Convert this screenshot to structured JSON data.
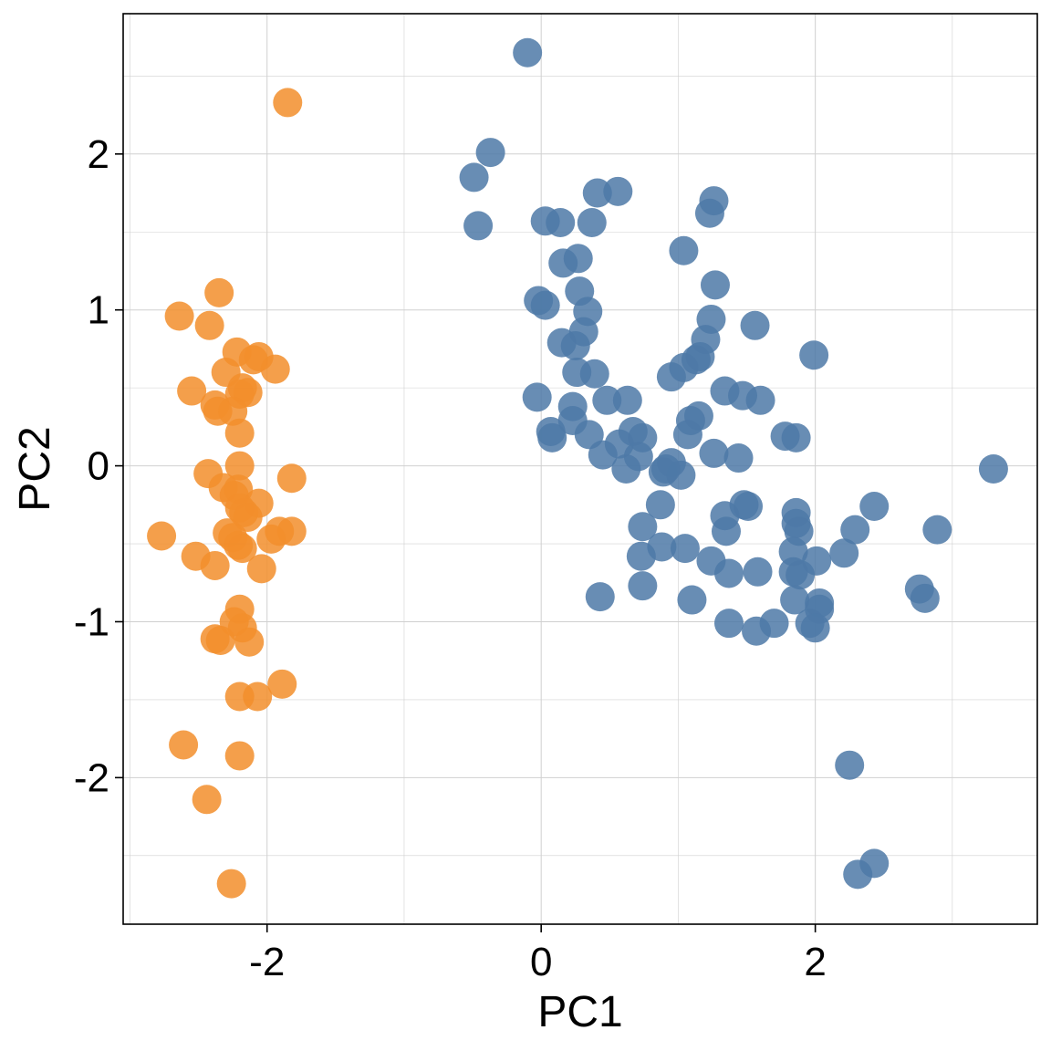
{
  "chart_data": {
    "type": "scatter",
    "title": "",
    "xlabel": "PC1",
    "ylabel": "PC2",
    "xlim": [
      -3.05,
      3.62
    ],
    "ylim": [
      -2.94,
      2.9
    ],
    "x_ticks": [
      -2,
      0,
      2
    ],
    "x_tick_labels": [
      "-2",
      "0",
      "2"
    ],
    "y_ticks": [
      -2,
      -1,
      0,
      1,
      2
    ],
    "y_tick_labels": [
      "-2",
      "-1",
      "0",
      "1",
      "2"
    ],
    "grid": true,
    "legend": "none",
    "colors": {
      "orange": "#f28e2b",
      "blue": "#4e79a7",
      "grid": "#d0d0d0",
      "frame": "#000000"
    },
    "series": [
      {
        "color": "#f28e2b",
        "points": [
          [
            -1.85,
            2.33
          ],
          [
            -2.35,
            1.11
          ],
          [
            -2.64,
            0.96
          ],
          [
            -2.42,
            0.9
          ],
          [
            -2.22,
            0.73
          ],
          [
            -2.06,
            0.7
          ],
          [
            -2.1,
            0.68
          ],
          [
            -1.94,
            0.62
          ],
          [
            -2.3,
            0.6
          ],
          [
            -2.18,
            0.5
          ],
          [
            -2.55,
            0.48
          ],
          [
            -2.14,
            0.47
          ],
          [
            -2.2,
            0.46
          ],
          [
            -2.38,
            0.39
          ],
          [
            -2.36,
            0.35
          ],
          [
            -2.25,
            0.35
          ],
          [
            -2.2,
            0.21
          ],
          [
            -2.2,
            0.0
          ],
          [
            -2.43,
            -0.05
          ],
          [
            -1.82,
            -0.08
          ],
          [
            -2.21,
            -0.15
          ],
          [
            -2.32,
            -0.14
          ],
          [
            -2.24,
            -0.19
          ],
          [
            -2.06,
            -0.24
          ],
          [
            -2.2,
            -0.27
          ],
          [
            -2.17,
            -0.3
          ],
          [
            -2.14,
            -0.33
          ],
          [
            -2.77,
            -0.45
          ],
          [
            -1.91,
            -0.42
          ],
          [
            -1.82,
            -0.42
          ],
          [
            -2.29,
            -0.43
          ],
          [
            -2.25,
            -0.46
          ],
          [
            -1.97,
            -0.47
          ],
          [
            -2.21,
            -0.51
          ],
          [
            -2.18,
            -0.53
          ],
          [
            -2.52,
            -0.58
          ],
          [
            -2.38,
            -0.64
          ],
          [
            -2.04,
            -0.66
          ],
          [
            -2.2,
            -0.92
          ],
          [
            -2.24,
            -1.0
          ],
          [
            -2.18,
            -1.04
          ],
          [
            -2.38,
            -1.11
          ],
          [
            -2.34,
            -1.12
          ],
          [
            -2.13,
            -1.13
          ],
          [
            -1.89,
            -1.4
          ],
          [
            -2.2,
            -1.48
          ],
          [
            -2.07,
            -1.48
          ],
          [
            -2.61,
            -1.79
          ],
          [
            -2.2,
            -1.86
          ],
          [
            -2.44,
            -2.14
          ],
          [
            -2.26,
            -2.68
          ]
        ]
      },
      {
        "color": "#4e79a7",
        "points": [
          [
            -0.1,
            2.65
          ],
          [
            -0.37,
            2.01
          ],
          [
            -0.49,
            1.85
          ],
          [
            -0.46,
            1.54
          ],
          [
            0.41,
            1.75
          ],
          [
            0.56,
            1.76
          ],
          [
            1.26,
            1.7
          ],
          [
            1.23,
            1.62
          ],
          [
            0.03,
            1.57
          ],
          [
            0.14,
            1.56
          ],
          [
            0.37,
            1.56
          ],
          [
            1.04,
            1.38
          ],
          [
            0.16,
            1.3
          ],
          [
            0.27,
            1.33
          ],
          [
            1.27,
            1.16
          ],
          [
            0.28,
            1.12
          ],
          [
            -0.02,
            1.06
          ],
          [
            0.03,
            1.03
          ],
          [
            0.34,
            0.99
          ],
          [
            1.24,
            0.94
          ],
          [
            1.56,
            0.9
          ],
          [
            0.31,
            0.86
          ],
          [
            0.15,
            0.79
          ],
          [
            0.25,
            0.77
          ],
          [
            1.2,
            0.81
          ],
          [
            1.99,
            0.71
          ],
          [
            1.16,
            0.7
          ],
          [
            1.13,
            0.68
          ],
          [
            1.04,
            0.63
          ],
          [
            0.95,
            0.57
          ],
          [
            0.26,
            0.6
          ],
          [
            0.39,
            0.59
          ],
          [
            1.34,
            0.48
          ],
          [
            1.47,
            0.45
          ],
          [
            1.6,
            0.42
          ],
          [
            -0.03,
            0.44
          ],
          [
            0.48,
            0.42
          ],
          [
            0.63,
            0.42
          ],
          [
            0.23,
            0.38
          ],
          [
            1.15,
            0.32
          ],
          [
            1.09,
            0.29
          ],
          [
            0.23,
            0.29
          ],
          [
            0.07,
            0.22
          ],
          [
            0.35,
            0.2
          ],
          [
            1.07,
            0.2
          ],
          [
            0.08,
            0.18
          ],
          [
            0.67,
            0.22
          ],
          [
            0.74,
            0.18
          ],
          [
            1.78,
            0.19
          ],
          [
            1.86,
            0.18
          ],
          [
            0.57,
            0.14
          ],
          [
            0.71,
            0.06
          ],
          [
            1.26,
            0.08
          ],
          [
            1.44,
            0.05
          ],
          [
            0.45,
            0.07
          ],
          [
            0.62,
            -0.02
          ],
          [
            0.95,
            0.02
          ],
          [
            0.91,
            -0.02
          ],
          [
            0.89,
            -0.04
          ],
          [
            1.02,
            -0.06
          ],
          [
            3.3,
            -0.02
          ],
          [
            0.87,
            -0.25
          ],
          [
            1.48,
            -0.25
          ],
          [
            1.51,
            -0.26
          ],
          [
            2.43,
            -0.26
          ],
          [
            1.34,
            -0.32
          ],
          [
            1.86,
            -0.3
          ],
          [
            0.74,
            -0.39
          ],
          [
            1.35,
            -0.42
          ],
          [
            1.86,
            -0.37
          ],
          [
            1.88,
            -0.42
          ],
          [
            2.29,
            -0.41
          ],
          [
            2.89,
            -0.41
          ],
          [
            0.88,
            -0.52
          ],
          [
            1.05,
            -0.53
          ],
          [
            0.73,
            -0.58
          ],
          [
            1.84,
            -0.55
          ],
          [
            2.21,
            -0.56
          ],
          [
            1.24,
            -0.61
          ],
          [
            2.01,
            -0.61
          ],
          [
            1.37,
            -0.69
          ],
          [
            1.58,
            -0.68
          ],
          [
            1.84,
            -0.68
          ],
          [
            1.89,
            -0.7
          ],
          [
            0.74,
            -0.77
          ],
          [
            2.76,
            -0.79
          ],
          [
            2.8,
            -0.85
          ],
          [
            0.43,
            -0.84
          ],
          [
            1.1,
            -0.86
          ],
          [
            1.85,
            -0.86
          ],
          [
            2.03,
            -0.88
          ],
          [
            2.03,
            -0.92
          ],
          [
            1.37,
            -1.01
          ],
          [
            1.7,
            -1.01
          ],
          [
            1.96,
            -1.01
          ],
          [
            2.0,
            -1.04
          ],
          [
            1.57,
            -1.06
          ],
          [
            2.25,
            -1.92
          ],
          [
            2.43,
            -2.55
          ],
          [
            2.31,
            -2.62
          ]
        ]
      }
    ]
  }
}
